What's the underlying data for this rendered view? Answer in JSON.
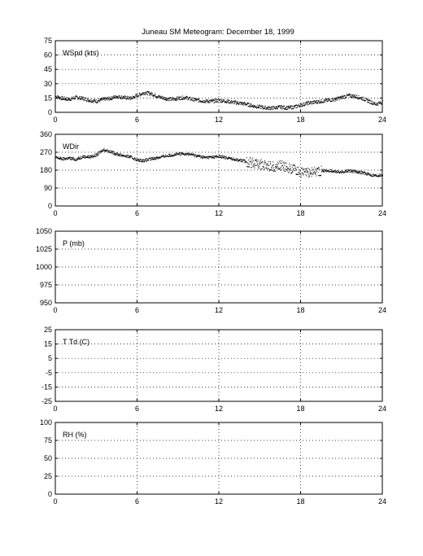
{
  "title": "Juneau SM Meteogram:   December 18, 1999",
  "chart_data": [
    {
      "type": "scatter",
      "label": "WSpd (kts)",
      "x": [
        0,
        0.5,
        1,
        1.5,
        2,
        2.5,
        3,
        3.5,
        4,
        4.5,
        5,
        5.5,
        6,
        6.5,
        7,
        7.5,
        8,
        8.5,
        9,
        9.5,
        10,
        10.5,
        11,
        11.5,
        12,
        12.5,
        13,
        13.5,
        14,
        14.5,
        15,
        15.5,
        16,
        16.5,
        17,
        17.5,
        18,
        18.5,
        19,
        19.5,
        20,
        20.5,
        21,
        21.5,
        22,
        22.5,
        23,
        23.5,
        24
      ],
      "y": [
        17,
        15,
        14,
        16,
        15,
        13,
        12,
        14,
        15,
        17,
        16,
        15,
        18,
        21,
        20,
        17,
        15,
        14,
        15,
        16,
        14,
        13,
        12,
        12,
        13,
        12,
        11,
        10,
        9,
        7,
        6,
        5,
        5,
        6,
        5,
        6,
        8,
        10,
        11,
        12,
        13,
        14,
        16,
        18,
        17,
        15,
        12,
        9,
        11
      ],
      "ylim": [
        0,
        75
      ],
      "yticks": [
        0,
        15,
        30,
        45,
        60,
        75
      ],
      "xlim": [
        0,
        24
      ],
      "xticks": [
        0,
        6,
        12,
        18,
        24
      ],
      "grid": true
    },
    {
      "type": "scatter",
      "label": "WDir",
      "x": [
        0,
        0.5,
        1,
        1.5,
        2,
        2.5,
        3,
        3.5,
        4,
        4.5,
        5,
        5.5,
        6,
        6.5,
        7,
        7.5,
        8,
        8.5,
        9,
        9.5,
        10,
        10.5,
        11,
        11.5,
        12,
        12.5,
        13,
        13.5,
        14,
        14.5,
        15,
        15.5,
        16,
        16.5,
        17,
        17.5,
        18,
        18.5,
        19,
        19.5,
        20,
        20.5,
        21,
        21.5,
        22,
        22.5,
        23,
        23.5,
        24
      ],
      "y": [
        245,
        238,
        242,
        235,
        250,
        248,
        258,
        285,
        275,
        262,
        255,
        248,
        232,
        230,
        238,
        245,
        252,
        258,
        262,
        265,
        260,
        252,
        245,
        248,
        250,
        245,
        238,
        232,
        225,
        218,
        212,
        205,
        200,
        205,
        195,
        185,
        170,
        168,
        175,
        180,
        178,
        175,
        172,
        178,
        175,
        170,
        160,
        155,
        158
      ],
      "ylim": [
        0,
        360
      ],
      "yticks": [
        0,
        90,
        180,
        270,
        360
      ],
      "xlim": [
        0,
        24
      ],
      "xticks": [
        0,
        6,
        12,
        18,
        24
      ],
      "grid": true
    },
    {
      "type": "line",
      "label": "P (mb)",
      "x": [],
      "y": [],
      "ylim": [
        950,
        1050
      ],
      "yticks": [
        950,
        975,
        1000,
        1025,
        1050
      ],
      "xlim": [
        0,
        24
      ],
      "xticks": [
        0,
        6,
        12,
        18,
        24
      ],
      "grid": true
    },
    {
      "type": "line",
      "label": "T Td (C)",
      "x": [],
      "y": [],
      "ylim": [
        -25,
        25
      ],
      "yticks": [
        -25,
        -15,
        -5,
        5,
        15,
        25
      ],
      "xlim": [
        0,
        24
      ],
      "xticks": [
        0,
        6,
        12,
        18,
        24
      ],
      "grid": true
    },
    {
      "type": "line",
      "label": "RH (%)",
      "x": [],
      "y": [],
      "ylim": [
        0,
        100
      ],
      "yticks": [
        0,
        25,
        50,
        75,
        100
      ],
      "xlim": [
        0,
        24
      ],
      "xticks": [
        0,
        6,
        12,
        18,
        24
      ],
      "grid": true
    }
  ]
}
